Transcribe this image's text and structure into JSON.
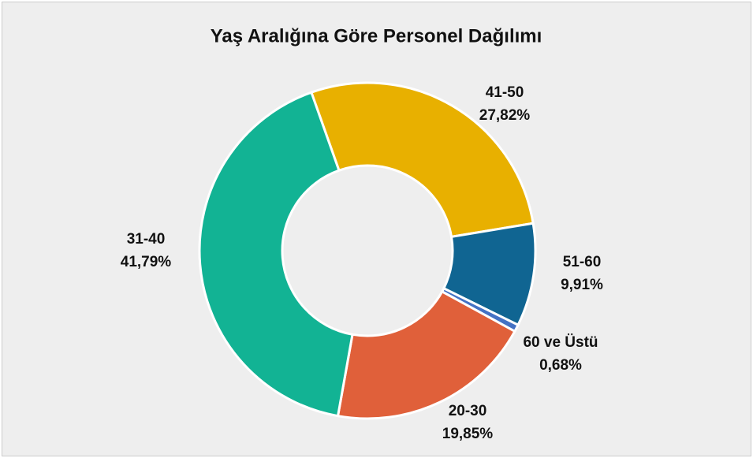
{
  "chart_data": {
    "type": "donut",
    "title": "Yaş Aralığına Göre Personel Dağılımı",
    "categories": [
      "41-50",
      "51-60",
      "60 ve Üstü",
      "20-30",
      "31-40"
    ],
    "values": [
      27.82,
      9.91,
      0.68,
      19.85,
      41.79
    ],
    "value_labels": [
      "27,82%",
      "9,91%",
      "0,68%",
      "19,85%",
      "41,79%"
    ],
    "colors": [
      "#e8b000",
      "#106592",
      "#4472c4",
      "#e0603a",
      "#12b394"
    ]
  }
}
